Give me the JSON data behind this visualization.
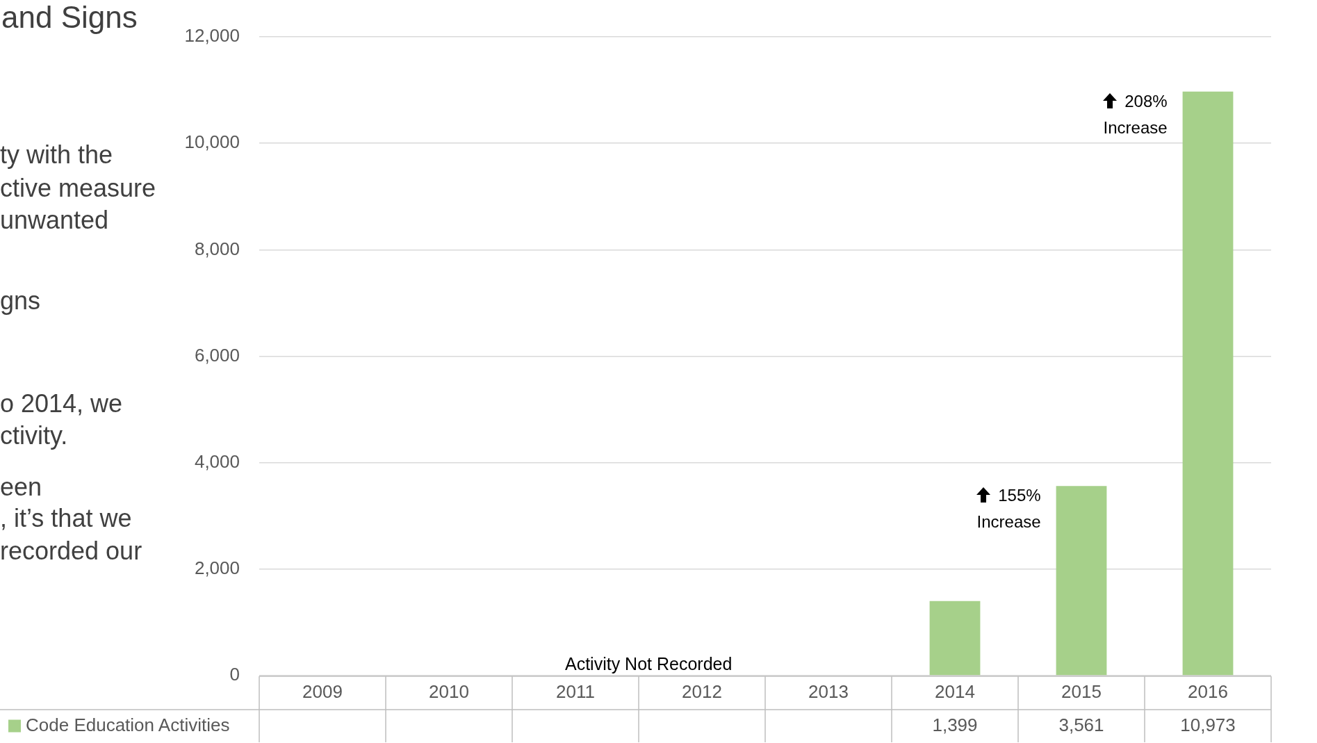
{
  "chart_data": {
    "type": "bar",
    "title": "and Signs",
    "categories": [
      "2009",
      "2010",
      "2011",
      "2012",
      "2013",
      "2014",
      "2015",
      "2016"
    ],
    "series": [
      {
        "name": "Code Education Activities",
        "color": "#a6d08a",
        "values": [
          null,
          null,
          null,
          null,
          null,
          1399,
          3561,
          10973
        ],
        "value_labels": [
          null,
          null,
          null,
          null,
          null,
          "1,399",
          "3,561",
          "10,973"
        ]
      }
    ],
    "ylim": [
      0,
      12000
    ],
    "yticks": [
      {
        "value": 0,
        "label": "0"
      },
      {
        "value": 2000,
        "label": "2,000"
      },
      {
        "value": 4000,
        "label": "4,000"
      },
      {
        "value": 6000,
        "label": "6,000"
      },
      {
        "value": 8000,
        "label": "8,000"
      },
      {
        "value": 10000,
        "label": "10,000"
      },
      {
        "value": 12000,
        "label": "12,000"
      }
    ],
    "grid": "y",
    "legend": "bottom left",
    "annotations": [
      "ty with the",
      "ctive measure",
      "unwanted",
      "gns",
      "o 2014, we",
      "ctivity.",
      "een",
      ", it’s that we",
      "recorded our",
      "Activity Not Recorded",
      {
        "text": "155% Increase",
        "x": "2015",
        "y": 3561
      },
      {
        "text": "208% Increase",
        "x": "2016",
        "y": 10973
      }
    ]
  }
}
